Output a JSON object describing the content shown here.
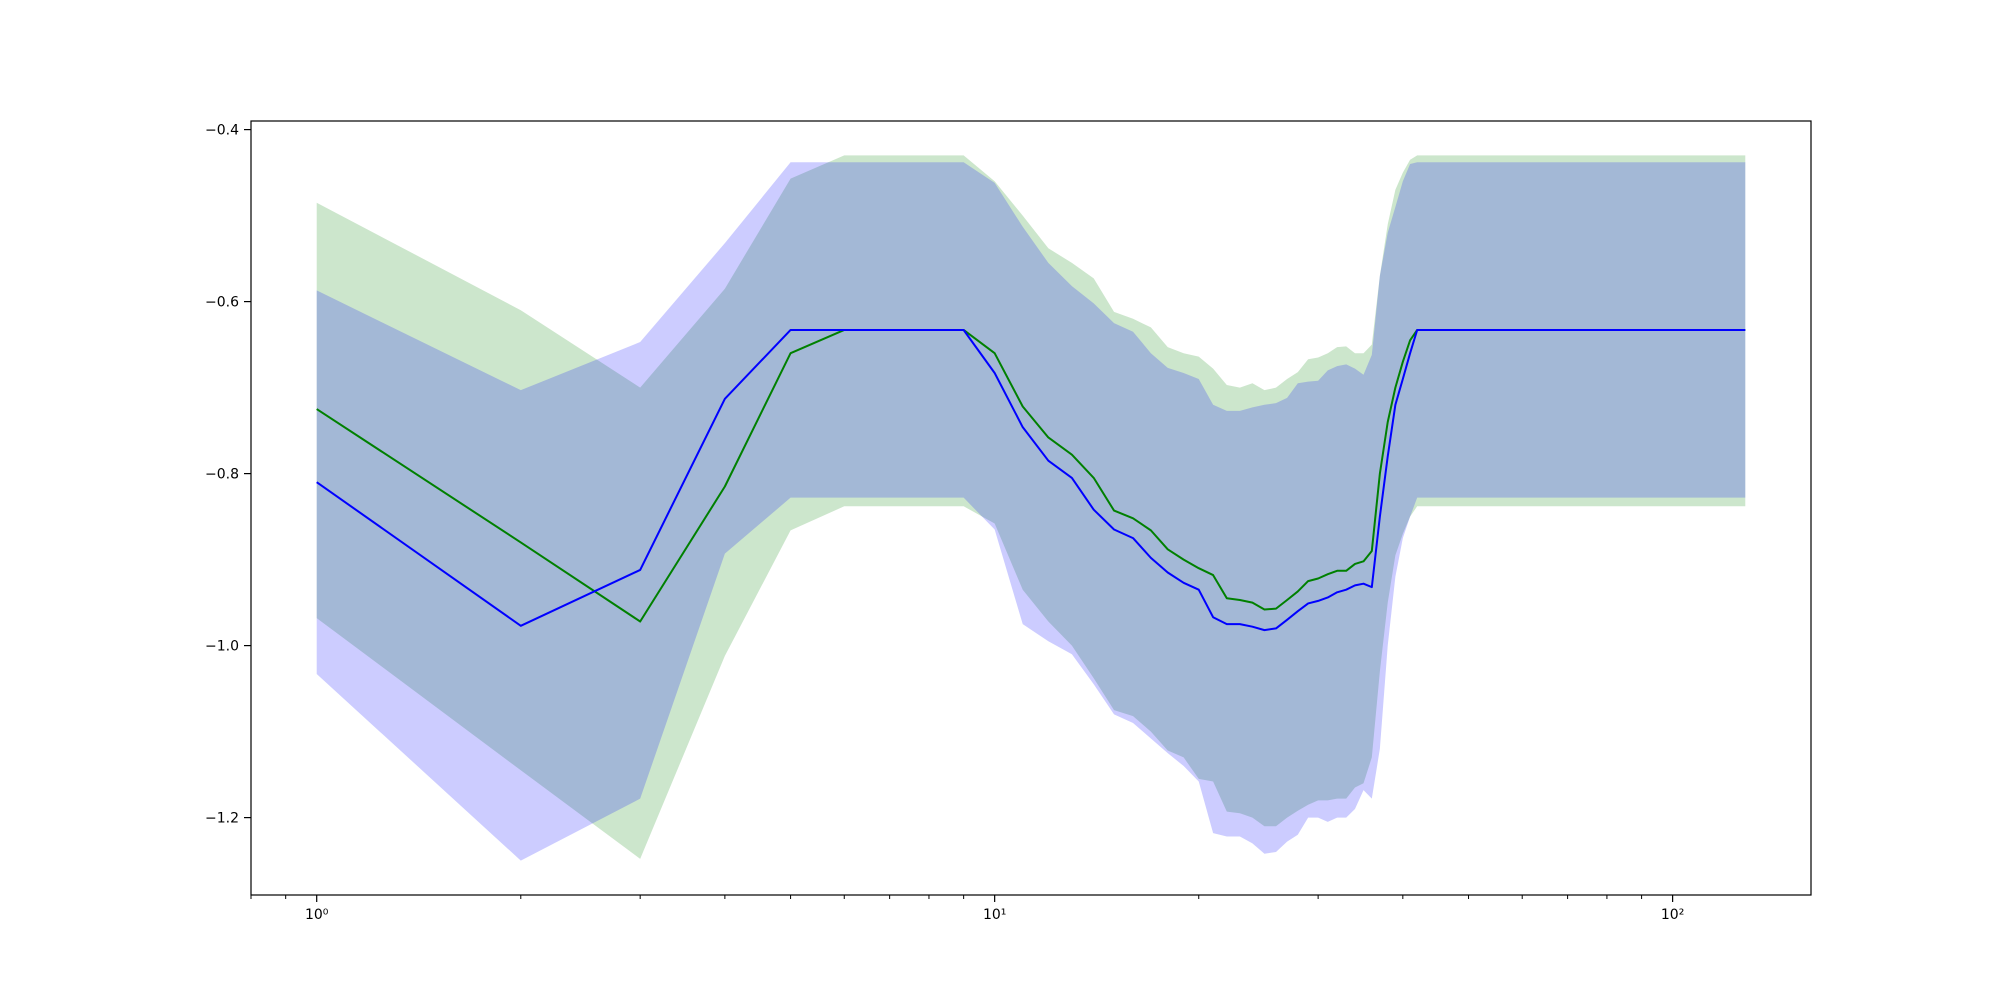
{
  "chart_data": {
    "type": "line",
    "xscale": "log",
    "xlim": [
      0.8,
      160
    ],
    "ylim": [
      -1.29,
      -0.39
    ],
    "x_ticks": [
      {
        "value": 1,
        "label": "10⁰"
      },
      {
        "value": 10,
        "label": "10¹"
      },
      {
        "value": 100,
        "label": "10²"
      }
    ],
    "y_ticks": [
      {
        "value": -0.4,
        "label": "−0.4"
      },
      {
        "value": -0.6,
        "label": "−0.6"
      },
      {
        "value": -0.8,
        "label": "−0.8"
      },
      {
        "value": -1.0,
        "label": "−1.0"
      },
      {
        "value": -1.2,
        "label": "−1.2"
      }
    ],
    "grid": false,
    "legend": "none",
    "series": [
      {
        "color": "#008000",
        "band_color": "#008000",
        "x": [
          1,
          2,
          3,
          4,
          5,
          6,
          7,
          8,
          9,
          10,
          11,
          12,
          13,
          14,
          15,
          16,
          17,
          18,
          19,
          20,
          21,
          22,
          23,
          24,
          25,
          26,
          27,
          28,
          29,
          30,
          31,
          32,
          33,
          34,
          35,
          36,
          37,
          38,
          39,
          40,
          41,
          42,
          43,
          44,
          128
        ],
        "values": [
          -0.725,
          -0.88,
          -0.972,
          -0.815,
          -0.66,
          -0.633,
          -0.633,
          -0.633,
          -0.633,
          -0.66,
          -0.722,
          -0.758,
          -0.778,
          -0.805,
          -0.843,
          -0.852,
          -0.866,
          -0.888,
          -0.9,
          -0.91,
          -0.918,
          -0.945,
          -0.947,
          -0.95,
          -0.958,
          -0.957,
          -0.947,
          -0.937,
          -0.925,
          -0.922,
          -0.917,
          -0.913,
          -0.913,
          -0.905,
          -0.902,
          -0.89,
          -0.8,
          -0.74,
          -0.7,
          -0.67,
          -0.645,
          -0.633,
          -0.633,
          -0.633,
          -0.633
        ],
        "lower": [
          -0.968,
          -1.145,
          -1.248,
          -1.012,
          -0.866,
          -0.838,
          -0.838,
          -0.838,
          -0.838,
          -0.858,
          -0.935,
          -0.972,
          -1.0,
          -1.038,
          -1.075,
          -1.082,
          -1.1,
          -1.122,
          -1.13,
          -1.155,
          -1.158,
          -1.193,
          -1.195,
          -1.2,
          -1.21,
          -1.21,
          -1.2,
          -1.192,
          -1.185,
          -1.18,
          -1.18,
          -1.178,
          -1.178,
          -1.165,
          -1.16,
          -1.13,
          -1.03,
          -0.95,
          -0.895,
          -0.87,
          -0.85,
          -0.838,
          -0.838,
          -0.838,
          -0.838
        ],
        "upper": [
          -0.485,
          -0.61,
          -0.7,
          -0.585,
          -0.457,
          -0.43,
          -0.43,
          -0.43,
          -0.43,
          -0.46,
          -0.5,
          -0.538,
          -0.555,
          -0.573,
          -0.612,
          -0.62,
          -0.63,
          -0.653,
          -0.66,
          -0.664,
          -0.678,
          -0.697,
          -0.7,
          -0.695,
          -0.703,
          -0.7,
          -0.69,
          -0.682,
          -0.667,
          -0.665,
          -0.66,
          -0.653,
          -0.652,
          -0.66,
          -0.66,
          -0.65,
          -0.57,
          -0.51,
          -0.47,
          -0.45,
          -0.435,
          -0.43,
          -0.43,
          -0.43,
          -0.43
        ]
      },
      {
        "color": "#0000ff",
        "band_color": "#0000ff",
        "x": [
          1,
          2,
          3,
          4,
          5,
          6,
          7,
          8,
          9,
          10,
          11,
          12,
          13,
          14,
          15,
          16,
          17,
          18,
          19,
          20,
          21,
          22,
          23,
          24,
          25,
          26,
          27,
          28,
          29,
          30,
          31,
          32,
          33,
          34,
          35,
          36,
          37,
          38,
          39,
          40,
          41,
          42,
          43,
          44,
          128
        ],
        "values": [
          -0.81,
          -0.977,
          -0.912,
          -0.713,
          -0.633,
          -0.633,
          -0.633,
          -0.633,
          -0.633,
          -0.683,
          -0.746,
          -0.785,
          -0.805,
          -0.842,
          -0.865,
          -0.875,
          -0.898,
          -0.915,
          -0.927,
          -0.935,
          -0.967,
          -0.975,
          -0.975,
          -0.978,
          -0.982,
          -0.98,
          -0.97,
          -0.96,
          -0.951,
          -0.948,
          -0.944,
          -0.938,
          -0.935,
          -0.93,
          -0.928,
          -0.932,
          -0.85,
          -0.78,
          -0.72,
          -0.69,
          -0.66,
          -0.633,
          -0.633,
          -0.633,
          -0.633
        ],
        "lower": [
          -1.033,
          -1.25,
          -1.178,
          -0.893,
          -0.828,
          -0.828,
          -0.828,
          -0.828,
          -0.828,
          -0.865,
          -0.975,
          -0.995,
          -1.01,
          -1.045,
          -1.08,
          -1.09,
          -1.108,
          -1.125,
          -1.14,
          -1.158,
          -1.218,
          -1.222,
          -1.222,
          -1.23,
          -1.242,
          -1.24,
          -1.228,
          -1.22,
          -1.2,
          -1.2,
          -1.205,
          -1.2,
          -1.2,
          -1.19,
          -1.168,
          -1.178,
          -1.12,
          -1.0,
          -0.92,
          -0.875,
          -0.85,
          -0.828,
          -0.828,
          -0.828,
          -0.828
        ],
        "upper": [
          -0.587,
          -0.703,
          -0.647,
          -0.532,
          -0.438,
          -0.438,
          -0.438,
          -0.438,
          -0.438,
          -0.462,
          -0.513,
          -0.555,
          -0.582,
          -0.602,
          -0.625,
          -0.635,
          -0.66,
          -0.677,
          -0.683,
          -0.69,
          -0.72,
          -0.727,
          -0.727,
          -0.723,
          -0.72,
          -0.718,
          -0.712,
          -0.695,
          -0.693,
          -0.692,
          -0.68,
          -0.675,
          -0.673,
          -0.678,
          -0.685,
          -0.662,
          -0.57,
          -0.52,
          -0.49,
          -0.46,
          -0.44,
          -0.438,
          -0.438,
          -0.438,
          -0.438
        ]
      }
    ]
  }
}
